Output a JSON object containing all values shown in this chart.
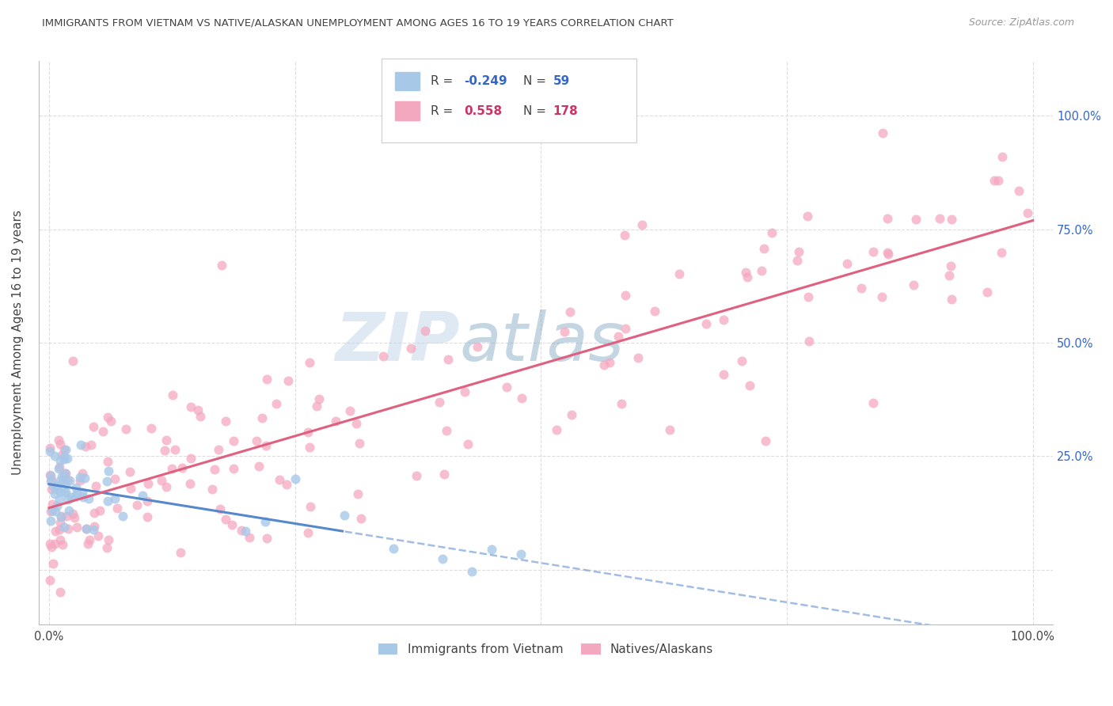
{
  "title": "IMMIGRANTS FROM VIETNAM VS NATIVE/ALASKAN UNEMPLOYMENT AMONG AGES 16 TO 19 YEARS CORRELATION CHART",
  "source": "Source: ZipAtlas.com",
  "ylabel": "Unemployment Among Ages 16 to 19 years",
  "watermark_zip": "ZIP",
  "watermark_atlas": "atlas",
  "blue_color": "#a8c8e8",
  "pink_color": "#f4a8c0",
  "blue_line_color": "#5588cc",
  "pink_line_color": "#e06080",
  "r_blue": -0.249,
  "r_pink": 0.558,
  "n_blue": 59,
  "n_pink": 178,
  "axis_label_color": "#3366cc",
  "text_color": "#444444",
  "grid_color": "#dddddd",
  "source_color": "#999999"
}
